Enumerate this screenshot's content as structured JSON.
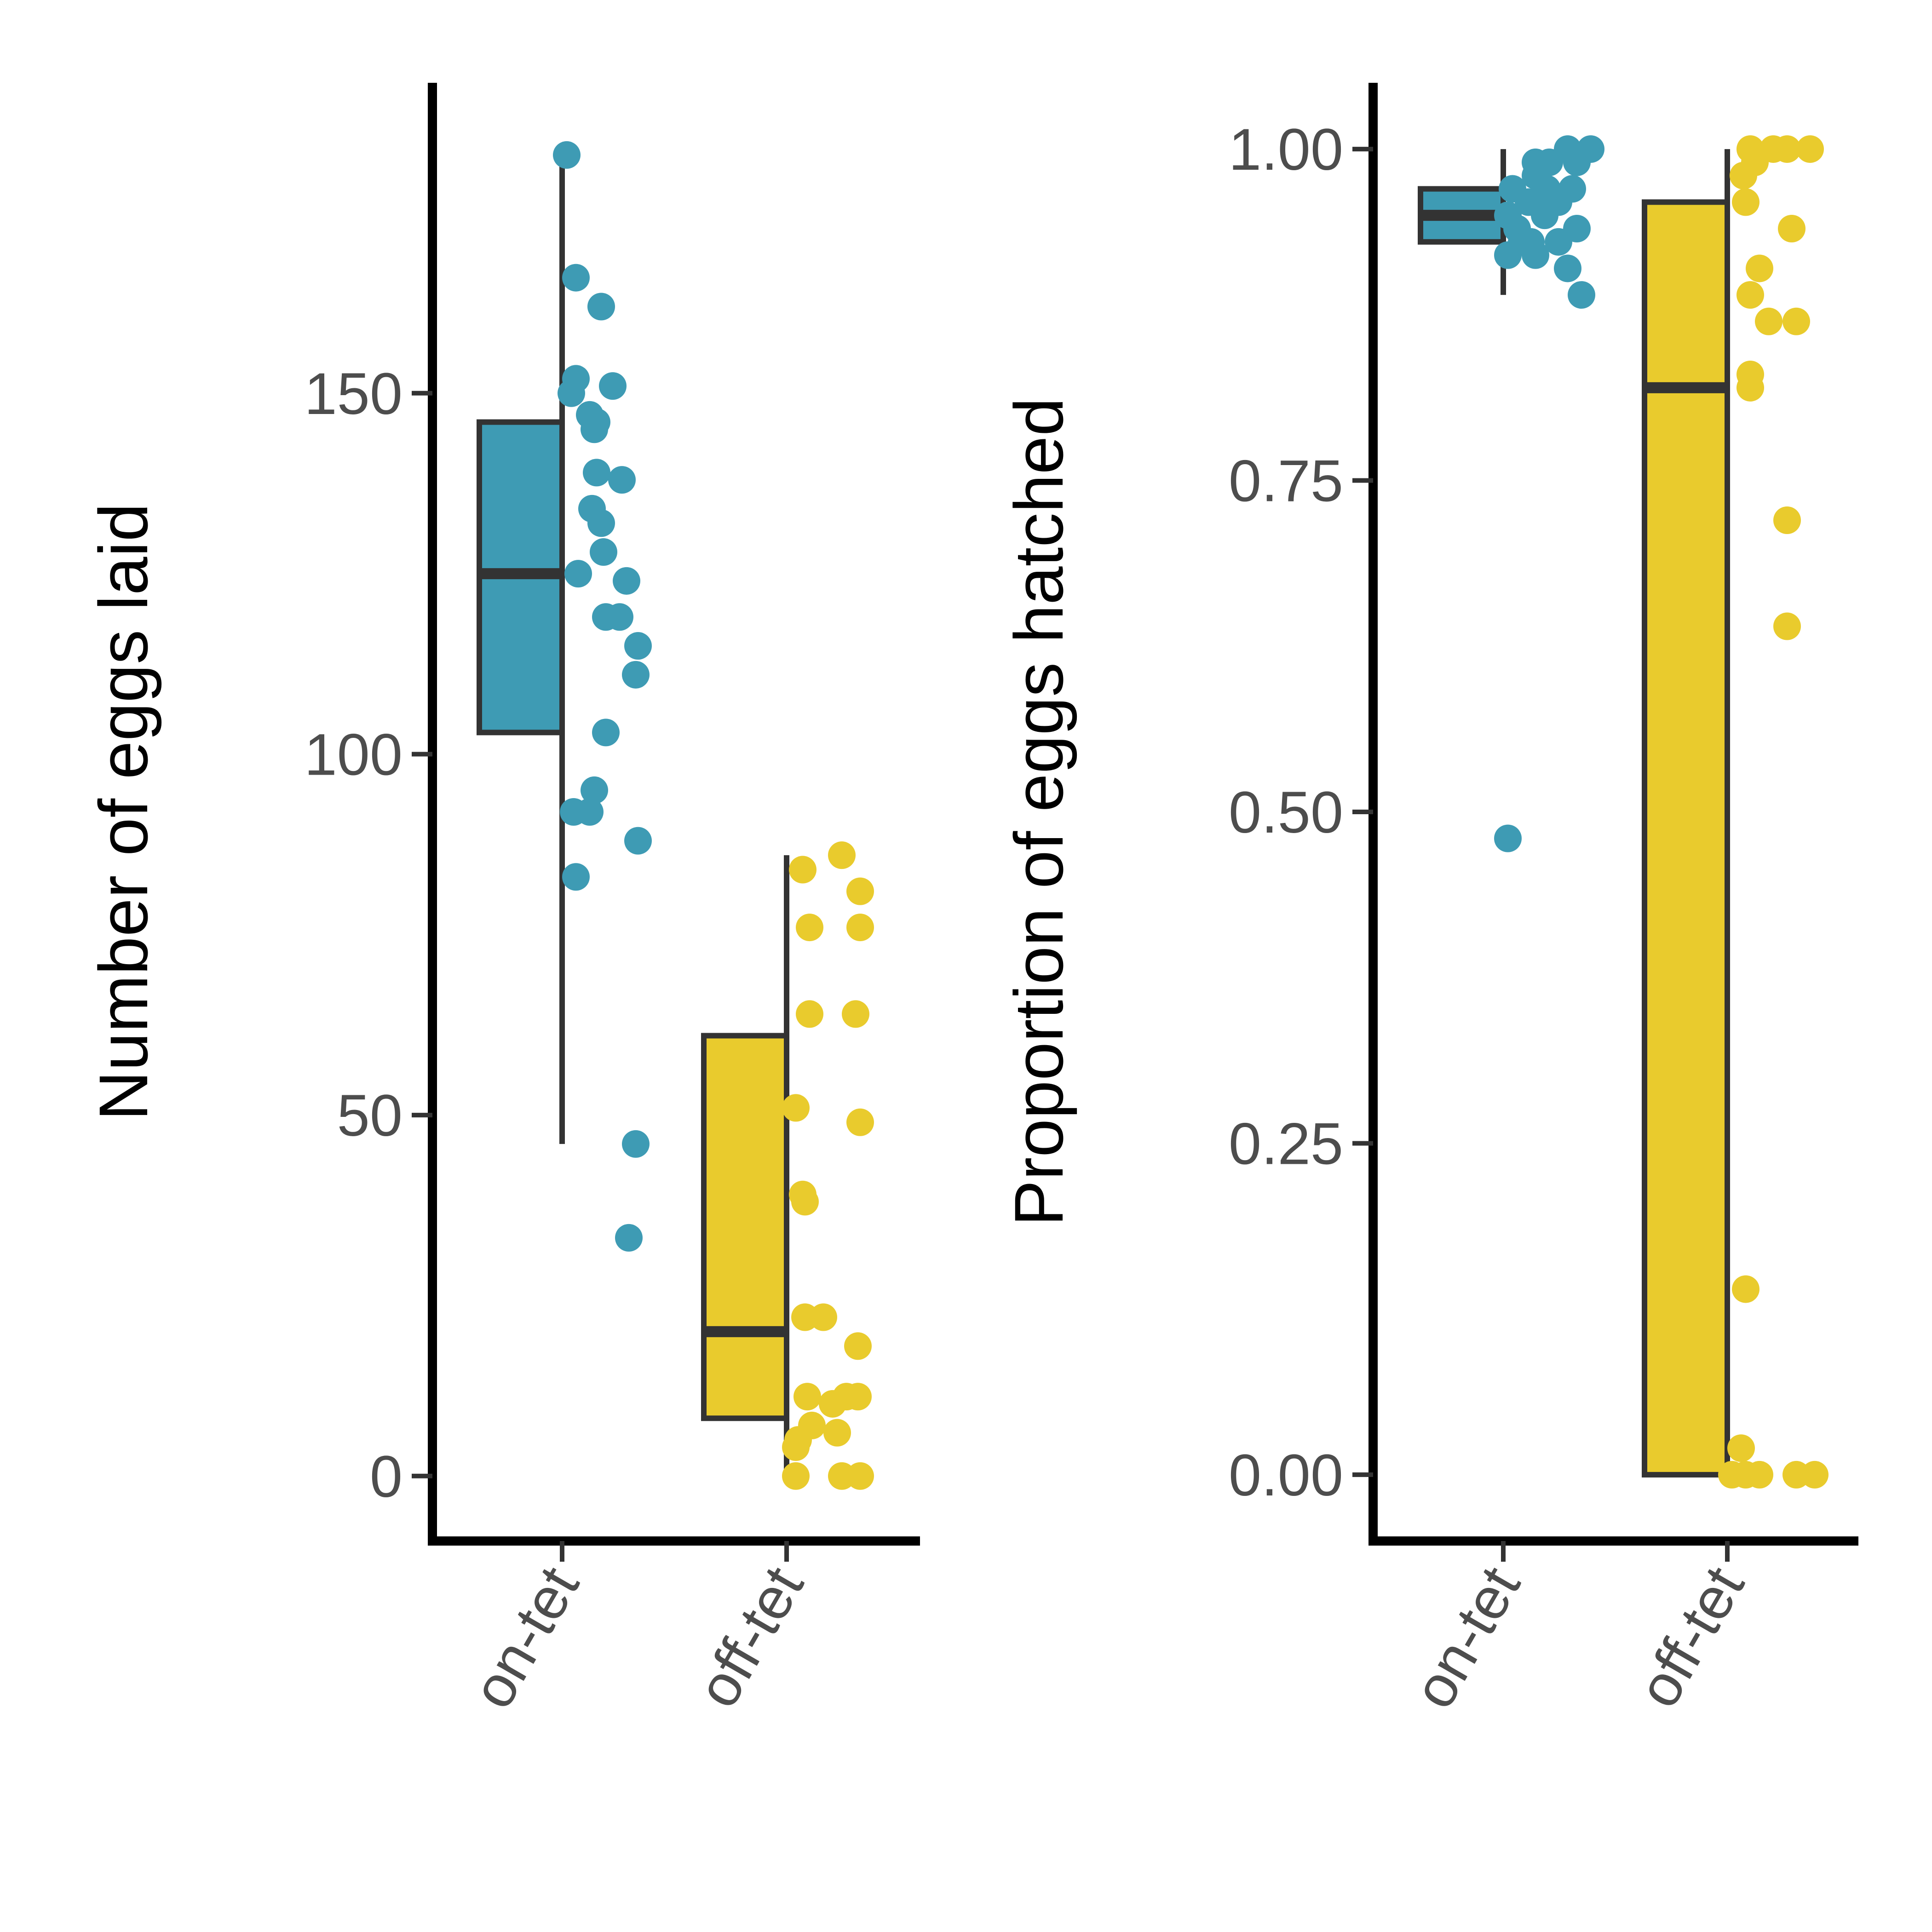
{
  "colors": {
    "on_tet": "#3e9bb4",
    "off_tet": "#e9cb2d",
    "box_outline": "#333333",
    "axis": "#000000",
    "tick_text": "#4d4d4d"
  },
  "chart_data": [
    {
      "type": "boxplot_with_jitter",
      "title": "",
      "xlabel": "",
      "ylabel": "Number of eggs laid",
      "ylim": [
        -9,
        193
      ],
      "yticks": [
        0,
        50,
        100,
        150
      ],
      "ytick_labels": [
        "0",
        "50",
        "100",
        "150"
      ],
      "categories": [
        "on-tet",
        "off-tet"
      ],
      "legend": "none",
      "grid": false,
      "boxes": [
        {
          "category": "on-tet",
          "whisker_low": 46,
          "q1": 103,
          "median": 125,
          "q3": 146,
          "whisker_high": 183
        },
        {
          "category": "off-tet",
          "whisker_low": 0,
          "q1": 8,
          "median": 20,
          "q3": 61,
          "whisker_high": 86
        }
      ],
      "points": [
        {
          "category": "on-tet",
          "values": [
            183,
            166,
            162,
            152,
            151,
            150,
            147,
            146,
            145,
            139,
            138,
            134,
            132,
            128,
            125,
            124,
            119,
            119,
            115,
            111,
            103,
            95,
            92,
            92,
            88,
            83,
            46,
            33
          ]
        },
        {
          "category": "off-tet",
          "values": [
            86,
            84,
            81,
            76,
            76,
            64,
            64,
            51,
            49,
            39,
            38,
            22,
            22,
            18,
            11,
            11,
            11,
            10,
            7,
            6,
            5,
            4,
            0,
            0,
            0
          ]
        }
      ]
    },
    {
      "type": "boxplot_with_jitter",
      "title": "",
      "xlabel": "",
      "ylabel": "Proportion of eggs hatched",
      "ylim": [
        -0.05,
        1.05
      ],
      "yticks": [
        0,
        0.25,
        0.5,
        0.75,
        1
      ],
      "ytick_labels": [
        "0.00",
        "0.25",
        "0.50",
        "0.75",
        "1.00"
      ],
      "categories": [
        "on-tet",
        "off-tet"
      ],
      "legend": "none",
      "grid": false,
      "boxes": [
        {
          "category": "on-tet",
          "whisker_low": 0.89,
          "q1": 0.93,
          "median": 0.95,
          "q3": 0.97,
          "whisker_high": 1.0
        },
        {
          "category": "off-tet",
          "whisker_low": 0.0,
          "q1": 0.0,
          "median": 0.82,
          "q3": 0.96,
          "whisker_high": 1.0
        }
      ],
      "points": [
        {
          "category": "on-tet",
          "values": [
            1.0,
            1.0,
            0.99,
            0.99,
            0.99,
            0.98,
            0.97,
            0.97,
            0.97,
            0.96,
            0.96,
            0.95,
            0.95,
            0.94,
            0.94,
            0.93,
            0.93,
            0.93,
            0.92,
            0.92,
            0.91,
            0.89,
            0.48
          ]
        },
        {
          "category": "off-tet",
          "values": [
            1.0,
            1.0,
            1.0,
            1.0,
            0.99,
            0.98,
            0.96,
            0.94,
            0.91,
            0.89,
            0.87,
            0.87,
            0.83,
            0.82,
            0.72,
            0.64,
            0.14,
            0.02,
            0.0,
            0.0,
            0.0,
            0.0,
            0.0
          ]
        }
      ]
    }
  ]
}
